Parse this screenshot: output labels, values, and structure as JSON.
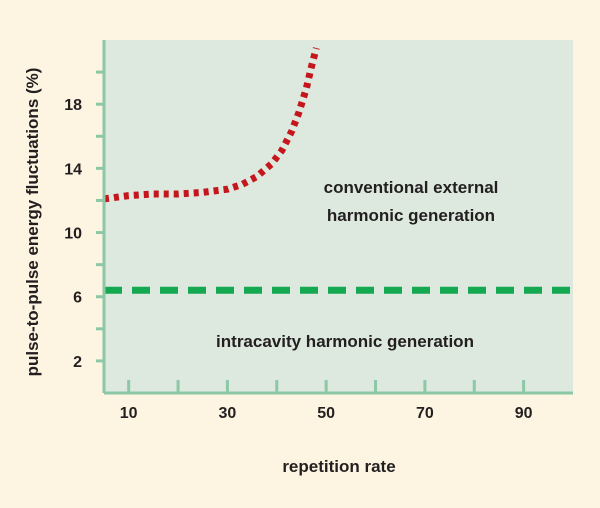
{
  "chart_data": {
    "type": "line",
    "title": "",
    "xlabel": "repetition rate",
    "ylabel": "pulse-to-pulse energy fluctuations (%)",
    "xlim": [
      5,
      100
    ],
    "ylim": [
      0,
      22
    ],
    "x_ticks": [
      10,
      30,
      50,
      70,
      90
    ],
    "x_tick_labels": [
      "10",
      "30",
      "50",
      "70",
      "90"
    ],
    "x_minor_ticks": [
      20,
      40,
      60,
      80
    ],
    "y_ticks": [
      2,
      6,
      10,
      14,
      18
    ],
    "y_tick_labels": [
      "2",
      "6",
      "10",
      "14",
      "18"
    ],
    "y_minor_ticks": [
      4,
      8,
      12,
      16,
      20
    ],
    "grid": false,
    "legend": "none",
    "series": [
      {
        "name": "conventional external harmonic generation",
        "style": "dotted",
        "color": "#c4161c",
        "x": [
          5,
          10,
          15,
          20,
          25,
          30,
          33,
          36,
          39,
          41,
          43,
          44.5,
          46,
          47,
          48
        ],
        "y": [
          12.1,
          12.3,
          12.4,
          12.4,
          12.5,
          12.7,
          13.0,
          13.5,
          14.3,
          15.1,
          16.3,
          17.5,
          19.0,
          20.3,
          21.5
        ]
      },
      {
        "name": "intracavity harmonic generation",
        "style": "dashed",
        "color": "#14a851",
        "x": [
          5,
          100
        ],
        "y": [
          6.4,
          6.4
        ]
      }
    ],
    "annotations": [
      {
        "text_lines": [
          "conventional external",
          "harmonic generation"
        ],
        "series": 0
      },
      {
        "text_lines": [
          "intracavity harmonic generation"
        ],
        "series": 1
      }
    ]
  },
  "colors": {
    "page_background": "#fdf5e2",
    "plot_background": "#dde9de",
    "axis": "#8cc8a6",
    "text": "#231f20"
  }
}
